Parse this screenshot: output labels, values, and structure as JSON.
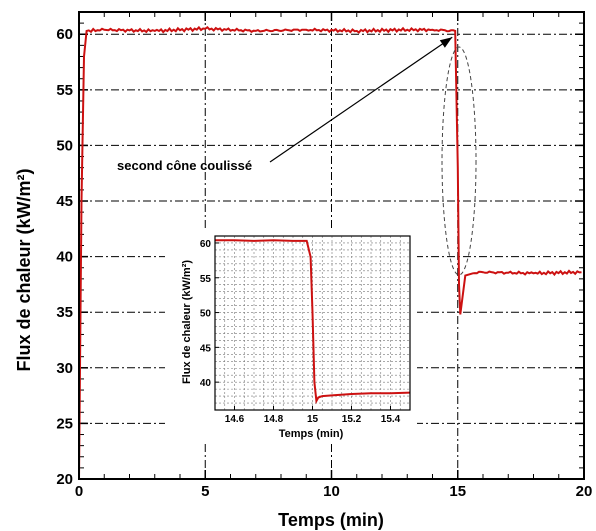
{
  "chart_data": [
    {
      "type": "line",
      "xlabel": "Temps (min)",
      "ylabel": "Flux de chaleur (kW/m²)",
      "xlim": [
        0,
        20
      ],
      "ylim": [
        20,
        62
      ],
      "xticks": [
        "0",
        "5",
        "10",
        "15",
        "20"
      ],
      "yticks": [
        "20",
        "25",
        "30",
        "35",
        "40",
        "45",
        "50",
        "55",
        "60"
      ],
      "grid": true,
      "line_color": "#cc1111",
      "series": [
        {
          "x": [
            0.0,
            0.1,
            0.2,
            0.3,
            1,
            3,
            5,
            7,
            9,
            11,
            13,
            14,
            14.9,
            15.0,
            15.05,
            15.1,
            15.3,
            15.6,
            16,
            18,
            19.9
          ],
          "y": [
            20,
            45,
            58,
            60.3,
            60.4,
            60.3,
            60.5,
            60.3,
            60.4,
            60.3,
            60.4,
            60.4,
            60.3,
            48,
            37.5,
            34.8,
            38.3,
            38.5,
            38.6,
            38.5,
            38.6
          ]
        }
      ],
      "annotation": {
        "text": "second cône coulissé",
        "points_to": [
          14.9,
          60
        ]
      }
    },
    {
      "type": "line",
      "role": "inset",
      "xlabel": "Temps (min)",
      "ylabel": "Flux de chaleur (kW/m²)",
      "xlim": [
        14.5,
        15.5
      ],
      "ylim": [
        36,
        61
      ],
      "xticks": [
        "14.6",
        "14.8",
        "15",
        "15.2",
        "15.4"
      ],
      "yticks": [
        "40",
        "45",
        "50",
        "55",
        "60"
      ],
      "grid": true,
      "line_color": "#cc1111",
      "series": [
        {
          "x": [
            14.5,
            14.6,
            14.7,
            14.8,
            14.9,
            14.97,
            14.99,
            15.0,
            15.01,
            15.02,
            15.03,
            15.05,
            15.1,
            15.2,
            15.3,
            15.4,
            15.5
          ],
          "y": [
            60.4,
            60.4,
            60.3,
            60.4,
            60.3,
            60.3,
            58,
            50,
            40,
            37.3,
            37.8,
            38.0,
            38.1,
            38.3,
            38.4,
            38.4,
            38.5
          ]
        }
      ]
    }
  ]
}
